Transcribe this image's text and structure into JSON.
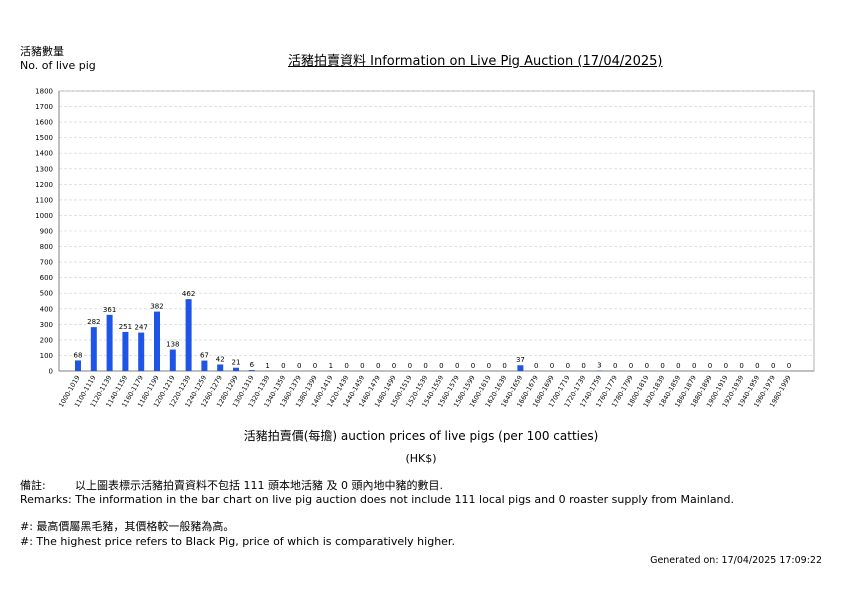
{
  "header": {
    "ylabel_zh": "活豬數量",
    "ylabel_en": "No. of live pig",
    "title": "活豬拍賣資料 Information on Live Pig Auction (17/04/2025)"
  },
  "axis": {
    "xlabel": "活豬拍賣價(每擔) auction prices of live pigs (per 100 catties)",
    "xunit": "(HK$)"
  },
  "remarks": {
    "prefix": "備註:",
    "zh": "以上圖表標示活豬拍賣資料不包括 111 頭本地活豬 及 0 頭內地中豬的數目.",
    "en": "Remarks: The information in the bar chart on live pig auction does not include 111 local pigs and 0 roaster supply from Mainland.",
    "note_zh": "#: 最高價屬黑毛豬，其價格較一般豬為高。",
    "note_en": "#: The highest price refers to Black Pig, price of which is comparatively higher."
  },
  "footer": {
    "generated": "Generated on: 17/04/2025 17:09:22"
  },
  "colors": {
    "bar": "#1f55e6",
    "grid": "#d0d0d0"
  },
  "chart_data": {
    "type": "bar",
    "title": "活豬拍賣資料 Information on Live Pig Auction (17/04/2025)",
    "ylabel": "活豬數量 No. of live pig",
    "xlabel": "活豬拍賣價(每擔) auction prices of live pigs (per 100 catties)",
    "ylim": [
      0,
      1800
    ],
    "yticks": [
      0,
      100,
      200,
      300,
      400,
      500,
      600,
      700,
      800,
      900,
      1000,
      1100,
      1200,
      1300,
      1400,
      1500,
      1600,
      1700,
      1800
    ],
    "grid": true,
    "categories": [
      "1000-1019",
      "1100-1119",
      "1120-1139",
      "1140-1159",
      "1160-1179",
      "1180-1199",
      "1200-1219",
      "1220-1239",
      "1240-1259",
      "1260-1279",
      "1280-1299",
      "1300-1319",
      "1320-1339",
      "1340-1359",
      "1360-1379",
      "1380-1399",
      "1400-1419",
      "1420-1439",
      "1440-1459",
      "1460-1479",
      "1480-1499",
      "1500-1519",
      "1520-1539",
      "1540-1559",
      "1560-1579",
      "1580-1599",
      "1600-1619",
      "1620-1639",
      "1640-1659",
      "1660-1679",
      "1680-1699",
      "1700-1719",
      "1720-1739",
      "1740-1759",
      "1760-1779",
      "1780-1799",
      "1800-1819",
      "1820-1839",
      "1840-1859",
      "1860-1879",
      "1880-1899",
      "1900-1919",
      "1920-1939",
      "1940-1959",
      "1960-1979",
      "1980-1999"
    ],
    "values": [
      68,
      282,
      361,
      251,
      247,
      382,
      138,
      462,
      67,
      42,
      21,
      6,
      1,
      0,
      0,
      0,
      1,
      0,
      0,
      0,
      0,
      0,
      0,
      0,
      0,
      0,
      0,
      0,
      37,
      0,
      0,
      0,
      0,
      3,
      0,
      0,
      0,
      0,
      0,
      0,
      0,
      0,
      0,
      0,
      0,
      0
    ]
  }
}
